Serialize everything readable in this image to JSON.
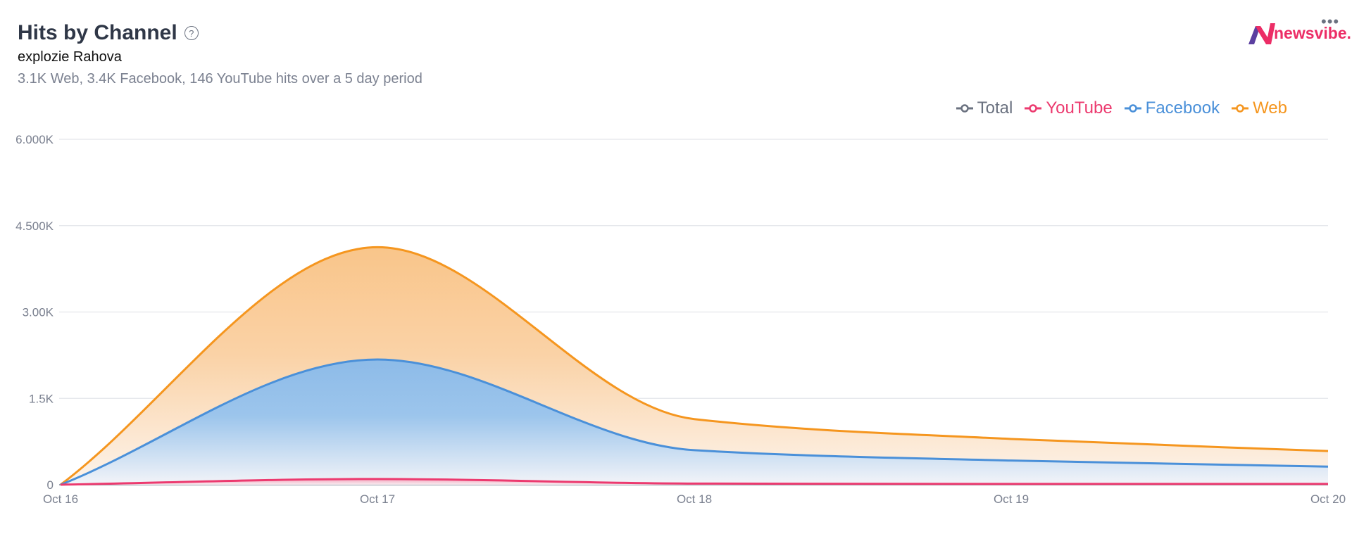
{
  "header": {
    "title": "Hits by Channel",
    "help_icon": "question-circle-icon",
    "subtitle": "explozie Rahova",
    "summary": "3.1K Web, 3.4K Facebook, 146 YouTube hits over a 5 day period",
    "logo_text": "newsvibe.ro",
    "more_icon": "more-horizontal-icon"
  },
  "chart_data": {
    "type": "area",
    "stacked": true,
    "categories": [
      "Oct 16",
      "Oct 17",
      "Oct 18",
      "Oct 19",
      "Oct 20"
    ],
    "ylim": [
      0,
      6000
    ],
    "yticks": [
      0,
      1500,
      3000,
      4500,
      6000
    ],
    "ytick_labels": [
      "0",
      "1.5K",
      "3.00K",
      "4.500K",
      "6.000K"
    ],
    "grid": true,
    "legend_placement": "top-right",
    "legend": [
      {
        "name": "Total",
        "color": "#6b7280"
      },
      {
        "name": "YouTube",
        "color": "#ec3a6f"
      },
      {
        "name": "Facebook",
        "color": "#4a90d9"
      },
      {
        "name": "Web",
        "color": "#f5961f"
      }
    ],
    "series": [
      {
        "name": "YouTube",
        "color": "#ec3a6f",
        "values": [
          0,
          100,
          20,
          13,
          13
        ]
      },
      {
        "name": "Facebook",
        "color": "#4a90d9",
        "values": [
          0,
          2075,
          580,
          407,
          302
        ]
      },
      {
        "name": "Web",
        "color": "#f5961f",
        "values": [
          0,
          1950,
          540,
          375,
          270
        ]
      }
    ]
  }
}
